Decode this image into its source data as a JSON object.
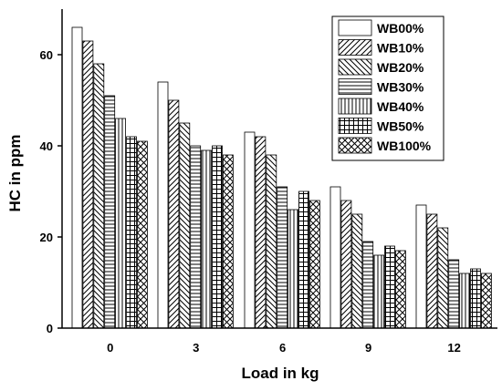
{
  "chart_data": {
    "type": "bar",
    "xlabel": "Load in kg",
    "ylabel": "HC in ppm",
    "categories": [
      "0",
      "3",
      "6",
      "9",
      "12"
    ],
    "ylim": [
      0,
      70
    ],
    "yticks": [
      0,
      20,
      40,
      60
    ],
    "grid": false,
    "legend_position": "top-right",
    "series": [
      {
        "name": "WB00%",
        "pattern": "blank",
        "values": [
          66,
          54,
          43,
          31,
          27
        ]
      },
      {
        "name": "WB10%",
        "pattern": "diagonal-forward",
        "values": [
          63,
          50,
          42,
          28,
          25
        ]
      },
      {
        "name": "WB20%",
        "pattern": "diagonal-back",
        "values": [
          58,
          45,
          38,
          25,
          22
        ]
      },
      {
        "name": "WB30%",
        "pattern": "horizontal",
        "values": [
          51,
          40,
          31,
          19,
          15
        ]
      },
      {
        "name": "WB40%",
        "pattern": "vertical",
        "values": [
          46,
          39,
          26,
          16,
          12
        ]
      },
      {
        "name": "WB50%",
        "pattern": "grid",
        "values": [
          42,
          40,
          30,
          18,
          13
        ]
      },
      {
        "name": "WB100%",
        "pattern": "crosshatch",
        "values": [
          41,
          38,
          28,
          17,
          12
        ]
      }
    ],
    "colors": {
      "bar_fill": "#ffffff",
      "stroke": "#000000"
    }
  }
}
